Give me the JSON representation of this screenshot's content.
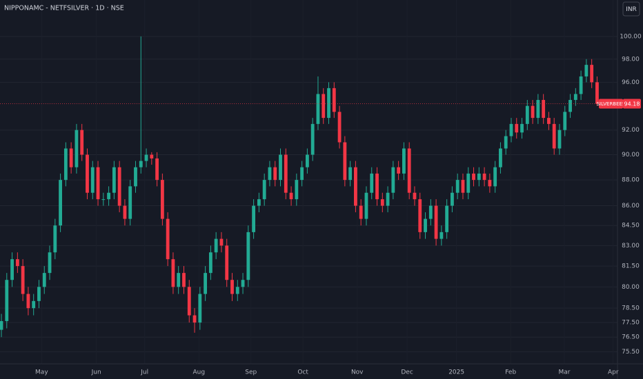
{
  "chart_data": {
    "type": "candlestick",
    "title": "NIPPONAMC - NETFSILVER · 1D · NSE",
    "currency": "INR",
    "name": "SILVERBEES",
    "up_color": "#22ab94",
    "down_color": "#f23645",
    "log_scale": true,
    "grid": true,
    "ylim": [
      74.7,
      103.3
    ],
    "yticks": [
      {
        "value": 75.5,
        "label": "75.50"
      },
      {
        "value": 76.5,
        "label": "76.50"
      },
      {
        "value": 77.5,
        "label": "77.50"
      },
      {
        "value": 78.5,
        "label": "78.50"
      },
      {
        "value": 80,
        "label": "80.00"
      },
      {
        "value": 81.5,
        "label": "81.50"
      },
      {
        "value": 83,
        "label": "83.00"
      },
      {
        "value": 84.5,
        "label": "84.50"
      },
      {
        "value": 86,
        "label": "86.00"
      },
      {
        "value": 88,
        "label": "88.00"
      },
      {
        "value": 90,
        "label": "90.00"
      },
      {
        "value": 92,
        "label": "92.00"
      },
      {
        "value": 96,
        "label": "96.00"
      },
      {
        "value": 98,
        "label": "98.00"
      },
      {
        "value": 100,
        "label": "100.00"
      }
    ],
    "xlim": [
      -0.26,
      114.8
    ],
    "xticks": [
      {
        "value": 7.5,
        "label": "May"
      },
      {
        "value": 17.7,
        "label": "Jun"
      },
      {
        "value": 26.7,
        "label": "Jul"
      },
      {
        "value": 36.8,
        "label": "Aug"
      },
      {
        "value": 46.5,
        "label": "Sep"
      },
      {
        "value": 56.2,
        "label": "Oct"
      },
      {
        "value": 66.3,
        "label": "Nov"
      },
      {
        "value": 75.6,
        "label": "Dec"
      },
      {
        "value": 84.8,
        "label": "2025"
      },
      {
        "value": 94.9,
        "label": "Feb"
      },
      {
        "value": 104.9,
        "label": "Mar"
      },
      {
        "value": 114.0,
        "label": "Apr"
      }
    ],
    "open": [
      77,
      77.6,
      80.5,
      82,
      81.5,
      79.5,
      78.5,
      79,
      80,
      81,
      82.5,
      84.5,
      88,
      90.5,
      89,
      92,
      90,
      87,
      89,
      86.5,
      86.5,
      87,
      89,
      86,
      85,
      87.5,
      89,
      89.5,
      90,
      89.7,
      88,
      85,
      82,
      80,
      81,
      80,
      78,
      77.5,
      79.5,
      81,
      82.5,
      83.5,
      83,
      80.5,
      79.5,
      80,
      80.5,
      84,
      86,
      86.5,
      88,
      89,
      88,
      90,
      87,
      86.5,
      88,
      89,
      90,
      92.5,
      95,
      93,
      95.5,
      93.5,
      91,
      88,
      89,
      86,
      85,
      87,
      88.5,
      86.5,
      86,
      87,
      89,
      88.5,
      90.5,
      87,
      86.5,
      84,
      85,
      86,
      83.5,
      84,
      86,
      87,
      88,
      87,
      88.5,
      88,
      88.5,
      88,
      87.5,
      89,
      90.5,
      91.5,
      92.5,
      91.8,
      92.5,
      94,
      93,
      94.5,
      93,
      92.5,
      90.5,
      92,
      93.5,
      94.5,
      95,
      96.5,
      97.5,
      96
    ],
    "high": [
      78.1,
      81,
      82.5,
      82.5,
      82,
      80,
      79.5,
      80.5,
      81.5,
      83,
      85,
      88.5,
      91,
      91,
      92.5,
      92.5,
      90.5,
      89.5,
      89.5,
      87,
      87.5,
      89.5,
      89.5,
      86.5,
      88,
      89.5,
      100,
      90.5,
      90.2,
      90.2,
      88.5,
      85.5,
      82.5,
      81.5,
      81.5,
      80.5,
      78.5,
      80,
      81.5,
      83,
      84,
      84,
      83.5,
      81,
      80.5,
      81,
      84.5,
      86.5,
      87,
      88.5,
      89.5,
      89.5,
      90.5,
      90.5,
      87.5,
      88.5,
      89.5,
      90.5,
      93,
      96.5,
      95.5,
      96,
      96,
      94,
      91.5,
      89.5,
      89.5,
      86.5,
      87.5,
      89,
      89,
      87,
      87.5,
      89.5,
      89.5,
      91,
      91,
      87.5,
      87,
      85.5,
      86.5,
      86.5,
      84.5,
      86.5,
      87.5,
      88.5,
      88.5,
      89,
      89,
      89,
      89,
      88.5,
      89.5,
      91,
      92,
      93,
      93,
      93,
      94.5,
      94.5,
      95,
      95,
      93.5,
      93,
      92.5,
      94,
      95,
      95.5,
      97,
      98,
      98,
      96.5
    ],
    "low": [
      76.5,
      77.1,
      80,
      81,
      79,
      78,
      78,
      78.5,
      79.5,
      80.5,
      82,
      84,
      87.5,
      88.5,
      88.5,
      89.5,
      86.5,
      86.5,
      86,
      86,
      86,
      86.5,
      85.5,
      84.5,
      84.5,
      87,
      88.5,
      89,
      89.2,
      87.5,
      84.5,
      81.5,
      79.5,
      79.5,
      79.5,
      77.5,
      76.8,
      77,
      79,
      80.5,
      82,
      82.5,
      80,
      79,
      79,
      79.5,
      80,
      83.5,
      85.5,
      86,
      87.5,
      87.5,
      87.5,
      86.5,
      86,
      86,
      87.5,
      88.5,
      89.5,
      92,
      92.5,
      92.5,
      93,
      90.5,
      87.5,
      87.5,
      85.5,
      84.5,
      84.5,
      86.5,
      86,
      85.5,
      85.5,
      86.5,
      88,
      88,
      86.5,
      86,
      83.5,
      83.5,
      84.5,
      83,
      83,
      83.5,
      85.5,
      86.5,
      86.5,
      86.5,
      87.5,
      87.5,
      87.5,
      87,
      87,
      88.5,
      90,
      91,
      91.3,
      91.3,
      92,
      92.5,
      92.5,
      92.5,
      92,
      90,
      90,
      91.5,
      93,
      94,
      94.5,
      96,
      95.5,
      94
    ],
    "close": [
      77.6,
      80.5,
      82,
      81.5,
      79.5,
      78.5,
      79,
      80,
      81,
      82.5,
      84.5,
      88,
      90.5,
      89,
      92,
      90,
      87,
      89,
      86.5,
      86.5,
      87,
      89,
      86,
      85,
      87.5,
      89,
      89.5,
      90,
      89.7,
      88,
      85,
      82,
      80,
      81,
      80,
      78,
      77.5,
      79.5,
      81,
      82.5,
      83.5,
      83,
      80.5,
      79.5,
      80,
      80.5,
      84,
      86,
      86.5,
      88,
      89,
      88,
      90,
      87,
      86.5,
      88,
      89,
      90,
      92.5,
      95,
      93,
      95.5,
      93.5,
      91,
      88,
      89,
      86,
      85,
      87,
      88.5,
      86.5,
      86,
      87,
      89,
      88.5,
      90.5,
      87,
      86.5,
      84,
      85,
      86,
      83.5,
      84,
      86,
      87,
      88,
      87,
      88.5,
      88,
      88.5,
      88,
      87.5,
      89,
      90.5,
      91.5,
      92.5,
      91.8,
      92.5,
      94,
      93,
      94.5,
      93,
      92.5,
      90.5,
      92,
      93.5,
      94.5,
      95,
      96.5,
      97.5,
      96,
      94.18
    ]
  }
}
